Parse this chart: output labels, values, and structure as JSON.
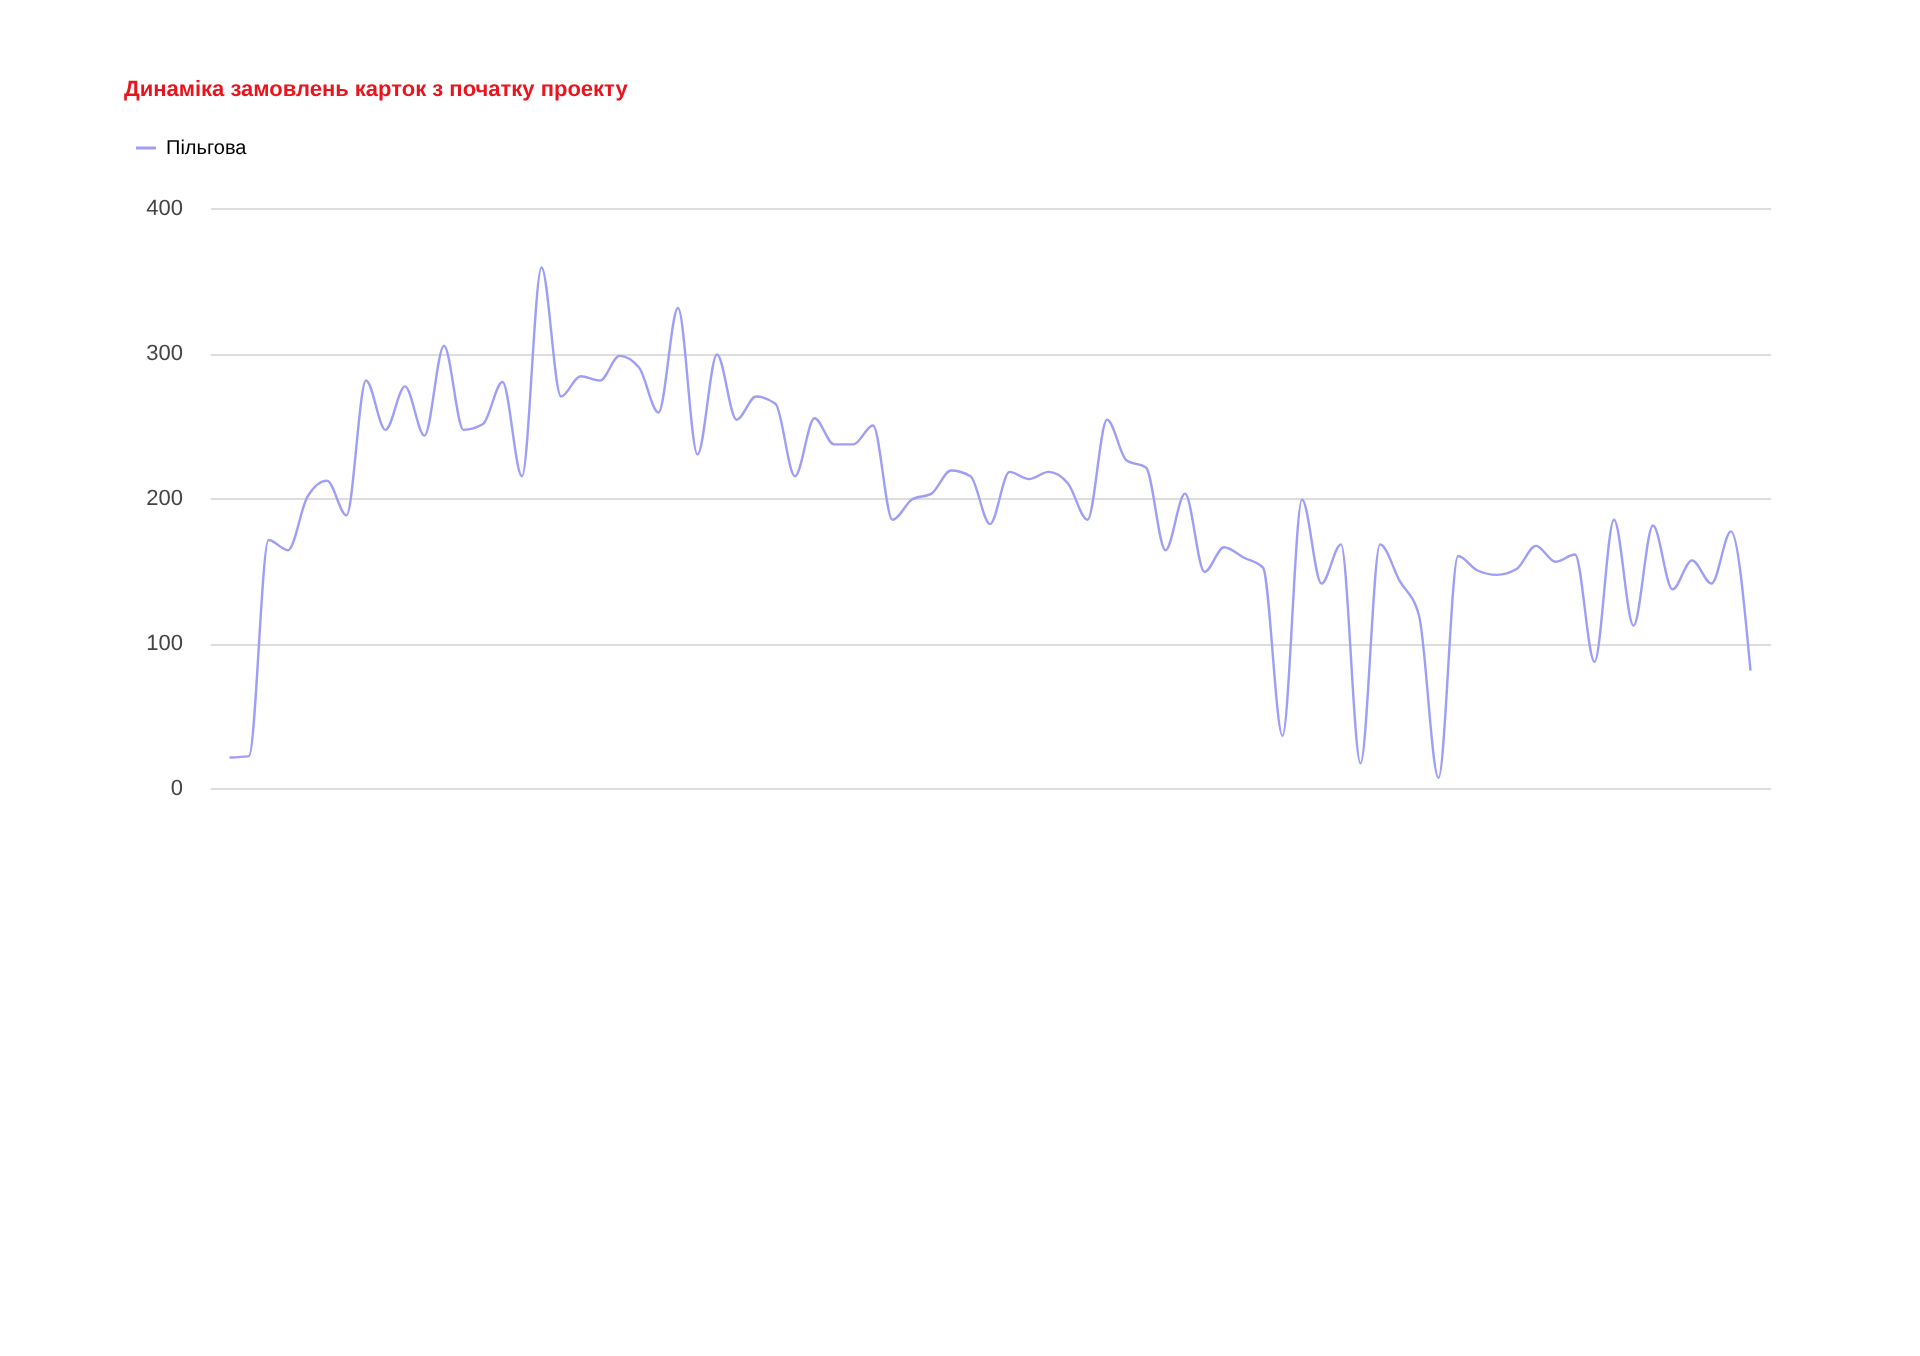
{
  "chart_data": {
    "type": "line",
    "title": "Динаміка замовлень карток з початку проекту",
    "categories": [
      null,
      null,
      null,
      null,
      null,
      null,
      null,
      null,
      null,
      null,
      null,
      null,
      null,
      null,
      null,
      null,
      null,
      null,
      null,
      null,
      null,
      null,
      null,
      null,
      null,
      null,
      null,
      null,
      null,
      null,
      null,
      null,
      null,
      null,
      null,
      null,
      null,
      null,
      null,
      null,
      null,
      null,
      null,
      null,
      null,
      null,
      null,
      null,
      null,
      null,
      null,
      null,
      null,
      null,
      null,
      null,
      null,
      null,
      null,
      null,
      null,
      null,
      null,
      null,
      null,
      null,
      null,
      null,
      null,
      null,
      null,
      null,
      null,
      null,
      null,
      null,
      null,
      null,
      null
    ],
    "series": [
      {
        "name": "Пільгова",
        "color": "#9e9ef5",
        "values": [
          21,
          22,
          171,
          164,
          201,
          212,
          188,
          281,
          247,
          277,
          243,
          305,
          247,
          251,
          280,
          215,
          359,
          270,
          284,
          281,
          298,
          290,
          259,
          331,
          230,
          299,
          254,
          270,
          265,
          215,
          255,
          237,
          237,
          250,
          185,
          199,
          203,
          219,
          215,
          182,
          218,
          213,
          218,
          210,
          185,
          254,
          226,
          221,
          164,
          203,
          149,
          166,
          159,
          152,
          36,
          199,
          141,
          168,
          17,
          168,
          143,
          119,
          7,
          160,
          150,
          147,
          151,
          167,
          156,
          161,
          87,
          185,
          112,
          181,
          137,
          157,
          141,
          177,
          81
        ]
      }
    ],
    "ylim": [
      0,
      400
    ],
    "yticks": [
      0,
      100,
      200,
      300,
      400
    ],
    "grid": "y",
    "legend": "top left",
    "marker": "none",
    "line_style": "solid"
  }
}
